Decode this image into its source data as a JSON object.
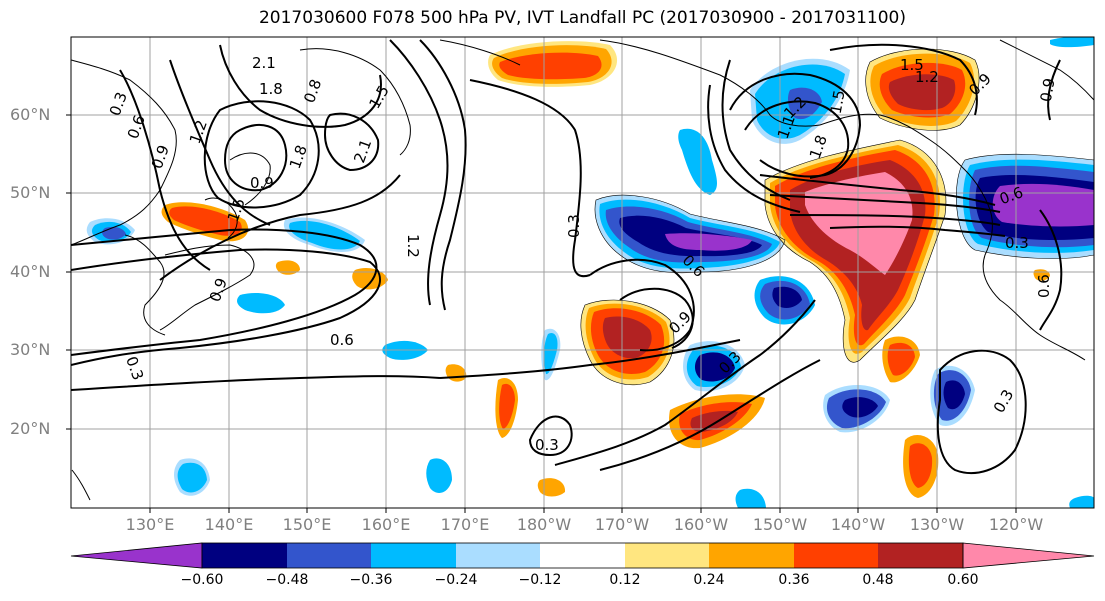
{
  "title": "2017030600 F078 500 hPa PV, IVT Landfall PC (2017030900 - 2017031100)",
  "lat_labels": [
    "60°N",
    "50°N",
    "40°N",
    "30°N",
    "20°N"
  ],
  "lon_labels": [
    "130°E",
    "140°E",
    "150°E",
    "160°E",
    "170°E",
    "180°W",
    "170°W",
    "160°W",
    "150°W",
    "140°W",
    "130°W",
    "120°W"
  ],
  "colorbar": {
    "ticks": [
      "−0.60",
      "−0.48",
      "−0.36",
      "−0.24",
      "−0.12",
      "0.12",
      "0.24",
      "0.36",
      "0.48",
      "0.60"
    ],
    "colors": [
      "#9933cc",
      "#000080",
      "#3355cc",
      "#00bbff",
      "#aaddff",
      "#ffffff",
      "#ffe680",
      "#ffa500",
      "#ff4000",
      "#b22222",
      "#ff88aa"
    ]
  },
  "contour_labels": [
    "2.1",
    "1.8",
    "0.3",
    "0.6",
    "0.9",
    "1.2",
    "0.8",
    "1.5",
    "2.1",
    "1.8",
    "0.9",
    "1.5",
    "1.2",
    "0.9",
    "0.3",
    "0.6",
    "0.3",
    "0.6",
    "0.3",
    "0.6",
    "0.9",
    "0.3",
    "0.3",
    "0.6",
    "0.3",
    "0.9",
    "1.2",
    "1.8",
    "1.5",
    "1.1",
    "1.5",
    "1.2",
    "0.9",
    "0.9",
    "0.6",
    "0.3",
    "0.3",
    "0.3"
  ]
}
